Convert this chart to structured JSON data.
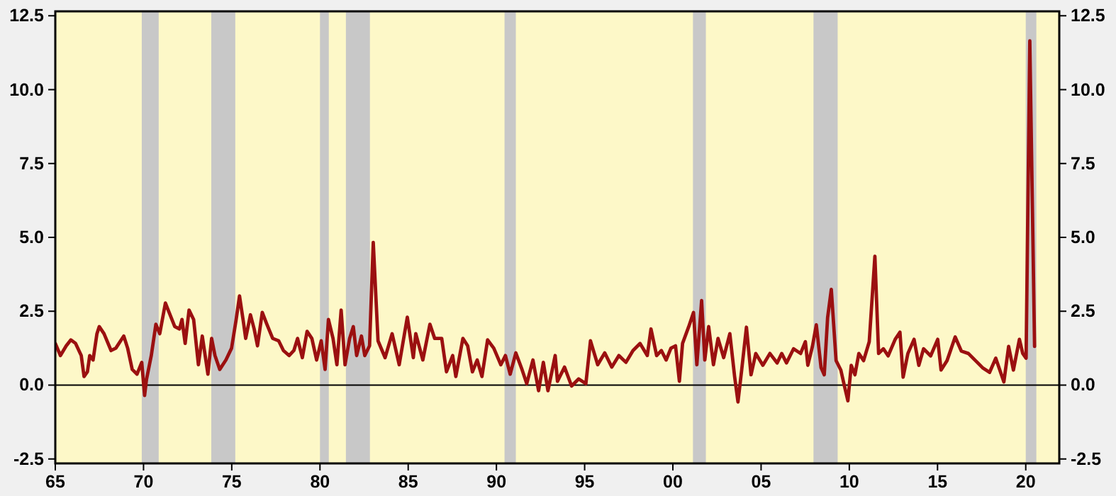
{
  "chart_data": {
    "type": "line",
    "xlim": [
      1965,
      2021.9
    ],
    "xticks": [
      {
        "value": 1965,
        "label": "65"
      },
      {
        "value": 1970,
        "label": "70"
      },
      {
        "value": 1975,
        "label": "75"
      },
      {
        "value": 1980,
        "label": "80"
      },
      {
        "value": 1985,
        "label": "85"
      },
      {
        "value": 1990,
        "label": "90"
      },
      {
        "value": 1995,
        "label": "95"
      },
      {
        "value": 2000,
        "label": "00"
      },
      {
        "value": 2005,
        "label": "05"
      },
      {
        "value": 2010,
        "label": "10"
      },
      {
        "value": 2015,
        "label": "15"
      },
      {
        "value": 2020,
        "label": "20"
      }
    ],
    "ylim": [
      -2.65,
      12.65
    ],
    "yticks": [
      {
        "value": -2.5,
        "label": "-2.5"
      },
      {
        "value": 0,
        "label": "0.0"
      },
      {
        "value": 2.5,
        "label": "2.5"
      },
      {
        "value": 5,
        "label": "5.0"
      },
      {
        "value": 7.5,
        "label": "7.5"
      },
      {
        "value": 10,
        "label": "10.0"
      },
      {
        "value": 12.5,
        "label": "12.5"
      }
    ],
    "y2lim": [
      -2.65,
      12.65
    ],
    "y2ticks": [
      {
        "value": -2.5,
        "label": "-2.5"
      },
      {
        "value": 0,
        "label": "0.0"
      },
      {
        "value": 2.5,
        "label": "2.5"
      },
      {
        "value": 5,
        "label": "5.0"
      },
      {
        "value": 7.5,
        "label": "7.5"
      },
      {
        "value": 10,
        "label": "10.0"
      },
      {
        "value": 12.5,
        "label": "12.5"
      }
    ],
    "grid": false,
    "marker": "none",
    "line_style": "solid",
    "ref_lines": [
      {
        "axis": "y",
        "value": 0,
        "color": "#000000"
      }
    ],
    "bands": [
      {
        "axis": "x",
        "from": 1969.9,
        "to": 1970.86,
        "color": "#c8c8c8"
      },
      {
        "axis": "x",
        "from": 1973.84,
        "to": 1975.2,
        "color": "#c8c8c8"
      },
      {
        "axis": "x",
        "from": 1980.0,
        "to": 1980.5,
        "color": "#c8c8c8"
      },
      {
        "axis": "x",
        "from": 1981.47,
        "to": 1982.83,
        "color": "#c8c8c8"
      },
      {
        "axis": "x",
        "from": 1990.46,
        "to": 1991.1,
        "color": "#c8c8c8"
      },
      {
        "axis": "x",
        "from": 2001.14,
        "to": 2001.87,
        "color": "#c8c8c8"
      },
      {
        "axis": "x",
        "from": 2007.97,
        "to": 2009.34,
        "color": "#c8c8c8"
      },
      {
        "axis": "x",
        "from": 2020.0,
        "to": 2020.6,
        "color": "#c8c8c8"
      }
    ],
    "series": [
      {
        "color": "#9b1010",
        "x": [
          1965.0,
          1965.29,
          1965.62,
          1965.88,
          1966.15,
          1966.47,
          1966.63,
          1966.82,
          1966.95,
          1967.14,
          1967.36,
          1967.49,
          1967.76,
          1968.16,
          1968.43,
          1968.88,
          1969.1,
          1969.36,
          1969.63,
          1969.9,
          1970.06,
          1970.17,
          1970.44,
          1970.7,
          1970.92,
          1971.24,
          1971.45,
          1971.77,
          1972.04,
          1972.18,
          1972.36,
          1972.58,
          1972.84,
          1973.11,
          1973.33,
          1973.65,
          1973.86,
          1974.05,
          1974.32,
          1974.67,
          1974.99,
          1975.25,
          1975.44,
          1975.66,
          1975.79,
          1976.06,
          1976.27,
          1976.46,
          1976.73,
          1976.99,
          1977.32,
          1977.66,
          1977.93,
          1978.25,
          1978.52,
          1978.73,
          1979.0,
          1979.27,
          1979.54,
          1979.81,
          1980.07,
          1980.29,
          1980.48,
          1980.74,
          1980.96,
          1981.2,
          1981.42,
          1981.68,
          1981.89,
          1982.08,
          1982.35,
          1982.54,
          1982.81,
          1983.02,
          1983.29,
          1983.69,
          1984.09,
          1984.49,
          1984.95,
          1985.29,
          1985.43,
          1985.83,
          1986.23,
          1986.5,
          1986.9,
          1987.17,
          1987.52,
          1987.7,
          1988.1,
          1988.37,
          1988.64,
          1988.91,
          1989.18,
          1989.5,
          1989.85,
          1990.25,
          1990.51,
          1990.78,
          1991.1,
          1991.45,
          1991.72,
          1992.07,
          1992.39,
          1992.66,
          1992.92,
          1993.33,
          1993.46,
          1993.86,
          1994.26,
          1994.66,
          1995.07,
          1995.33,
          1995.74,
          1996.14,
          1996.54,
          1996.94,
          1997.34,
          1997.74,
          1998.14,
          1998.55,
          1998.76,
          1999.08,
          1999.35,
          1999.62,
          1999.89,
          2000.15,
          2000.37,
          2000.55,
          2000.9,
          2001.17,
          2001.36,
          2001.63,
          2001.81,
          2002.03,
          2002.3,
          2002.56,
          2002.88,
          2003.23,
          2003.5,
          2003.69,
          2003.9,
          2004.17,
          2004.43,
          2004.7,
          2005.1,
          2005.5,
          2005.91,
          2006.17,
          2006.44,
          2006.84,
          2007.24,
          2007.51,
          2007.65,
          2007.91,
          2008.13,
          2008.4,
          2008.58,
          2008.77,
          2008.98,
          2009.25,
          2009.52,
          2009.73,
          2009.92,
          2010.11,
          2010.32,
          2010.54,
          2010.81,
          2011.13,
          2011.45,
          2011.66,
          2011.93,
          2012.2,
          2012.6,
          2012.87,
          2013.05,
          2013.32,
          2013.67,
          2013.94,
          2014.21,
          2014.61,
          2015.01,
          2015.2,
          2015.54,
          2016.0,
          2016.35,
          2016.75,
          2017.15,
          2017.55,
          2017.95,
          2018.3,
          2018.76,
          2019.03,
          2019.3,
          2019.64,
          2019.83,
          2020.02,
          2020.23,
          2020.5
        ],
        "values": [
          1.41,
          1.0,
          1.33,
          1.53,
          1.41,
          1.0,
          0.29,
          0.45,
          1.0,
          0.85,
          1.74,
          1.98,
          1.74,
          1.17,
          1.25,
          1.66,
          1.25,
          0.53,
          0.37,
          0.77,
          -0.35,
          0.2,
          1.0,
          2.06,
          1.74,
          2.78,
          2.46,
          1.98,
          1.9,
          2.22,
          1.41,
          2.54,
          2.22,
          0.69,
          1.66,
          0.37,
          1.58,
          1.0,
          0.53,
          0.85,
          1.25,
          2.22,
          3.02,
          2.14,
          1.58,
          2.38,
          1.9,
          1.33,
          2.46,
          2.06,
          1.58,
          1.5,
          1.17,
          1.0,
          1.17,
          1.58,
          0.93,
          1.82,
          1.58,
          0.85,
          1.5,
          0.53,
          2.22,
          1.58,
          0.69,
          2.54,
          0.69,
          1.58,
          1.98,
          1.0,
          1.66,
          1.0,
          1.33,
          4.83,
          1.5,
          0.93,
          1.74,
          0.69,
          2.3,
          0.93,
          1.74,
          0.85,
          2.06,
          1.58,
          1.58,
          0.45,
          1.0,
          0.29,
          1.58,
          1.33,
          0.45,
          0.85,
          0.29,
          1.53,
          1.25,
          0.69,
          1.0,
          0.37,
          1.09,
          0.53,
          0.05,
          0.85,
          -0.19,
          0.77,
          -0.19,
          1.0,
          0.13,
          0.61,
          -0.03,
          0.21,
          0.05,
          1.5,
          0.69,
          1.09,
          0.61,
          1.0,
          0.77,
          1.17,
          1.41,
          1.0,
          1.9,
          1.0,
          1.17,
          0.85,
          1.25,
          1.33,
          0.13,
          1.41,
          1.98,
          2.46,
          0.69,
          2.86,
          0.85,
          1.98,
          0.69,
          1.58,
          0.93,
          1.74,
          0.29,
          -0.57,
          0.51,
          1.96,
          0.35,
          1.07,
          0.67,
          1.07,
          0.75,
          1.07,
          0.75,
          1.23,
          1.07,
          1.47,
          0.67,
          1.31,
          2.04,
          0.59,
          0.35,
          2.28,
          3.24,
          0.83,
          0.51,
          -0.05,
          -0.53,
          0.67,
          0.35,
          1.07,
          0.83,
          1.47,
          4.36,
          1.07,
          1.23,
          0.99,
          1.55,
          1.79,
          0.27,
          1.07,
          1.55,
          0.67,
          1.23,
          0.99,
          1.55,
          0.51,
          0.83,
          1.63,
          1.15,
          1.07,
          0.83,
          0.59,
          0.43,
          0.91,
          0.11,
          1.31,
          0.51,
          1.55,
          1.07,
          0.91,
          11.65,
          1.31
        ]
      }
    ]
  }
}
